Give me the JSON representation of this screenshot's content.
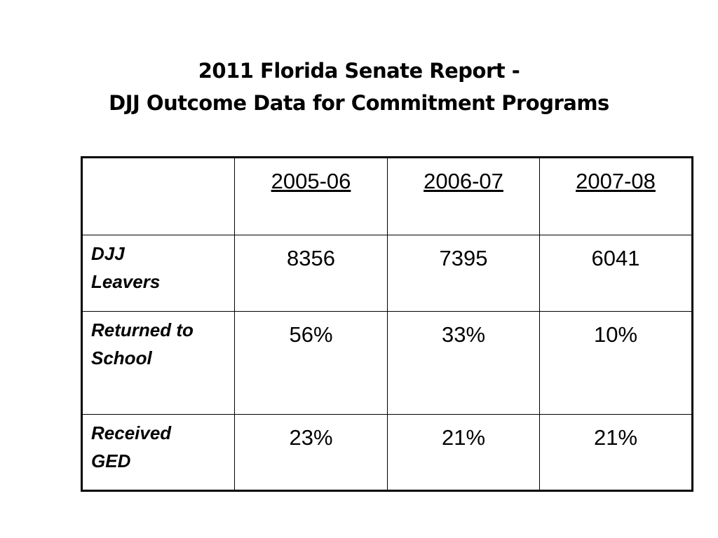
{
  "title": {
    "line1": "2011 Florida Senate Report -",
    "line2": "DJJ Outcome Data for Commitment Programs"
  },
  "table": {
    "columns": [
      "2005-06",
      "2006-07",
      "2007-08"
    ],
    "rows": [
      {
        "label_line1": "DJJ",
        "label_line2": "Leavers",
        "values": [
          "8356",
          "7395",
          "6041"
        ]
      },
      {
        "label_line1": "Returned to",
        "label_line2": "School",
        "values": [
          "56%",
          "33%",
          "10%"
        ]
      },
      {
        "label_line1": "Received",
        "label_line2": "GED",
        "values": [
          "23%",
          "21%",
          "21%"
        ]
      }
    ]
  }
}
